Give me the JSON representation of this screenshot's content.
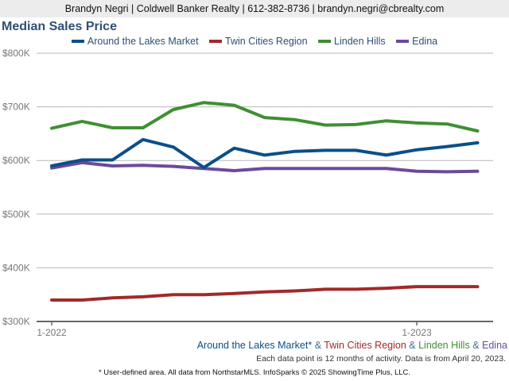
{
  "header": {
    "contact": "Brandyn Negri | Coldwell Banker Realty | 612-382-8736 | brandyn.negri@cbrealty.com"
  },
  "chart_data": {
    "type": "line",
    "title": "Median Sales Price",
    "xlabel": "",
    "ylabel": "",
    "ylim": [
      300000,
      800000
    ],
    "yticks": [
      300000,
      400000,
      500000,
      600000,
      700000,
      800000
    ],
    "ytick_labels": [
      "$300K",
      "$400K",
      "$500K",
      "$600K",
      "$700K",
      "$800K"
    ],
    "x": [
      "1-2022",
      "2-2022",
      "3-2022",
      "4-2022",
      "5-2022",
      "6-2022",
      "7-2022",
      "8-2022",
      "9-2022",
      "10-2022",
      "11-2022",
      "12-2022",
      "1-2023",
      "2-2023",
      "3-2023"
    ],
    "xtick_labels": [
      "1-2022",
      "1-2023"
    ],
    "xtick_positions": [
      0,
      12
    ],
    "grid": true,
    "legend_position": "top-center",
    "series": [
      {
        "name": "Around the Lakes Market",
        "color": "#0a4f8a",
        "values": [
          590000,
          601000,
          601000,
          639000,
          625000,
          587000,
          623000,
          610000,
          617000,
          619000,
          619000,
          610000,
          620000,
          626000,
          633000
        ]
      },
      {
        "name": "Twin Cities Region",
        "color": "#a12a2a",
        "values": [
          340000,
          340000,
          344000,
          346000,
          350000,
          350000,
          352000,
          355000,
          357000,
          360000,
          360000,
          362000,
          365000,
          365000,
          365000
        ]
      },
      {
        "name": "Linden Hills",
        "color": "#3f8f33",
        "values": [
          660000,
          673000,
          661000,
          661000,
          695000,
          708000,
          703000,
          680000,
          676000,
          666000,
          667000,
          674000,
          670000,
          668000,
          655000
        ]
      },
      {
        "name": "Edina",
        "color": "#6a4a9c",
        "values": [
          586000,
          596000,
          590000,
          591000,
          589000,
          585000,
          581000,
          585000,
          585000,
          585000,
          585000,
          585000,
          580000,
          579000,
          580000
        ]
      }
    ]
  },
  "caption": {
    "parts": [
      "Around the Lakes Market*",
      " & ",
      "Twin Cities Region",
      " & ",
      "Linden Hills",
      " & ",
      "Edina"
    ]
  },
  "note": "Each data point is 12 months of activity. Data is from April 20, 2023.",
  "footer": "* User-defined area. All data from NorthstarMLS. InfoSparks © 2025 ShowingTime Plus, LLC."
}
